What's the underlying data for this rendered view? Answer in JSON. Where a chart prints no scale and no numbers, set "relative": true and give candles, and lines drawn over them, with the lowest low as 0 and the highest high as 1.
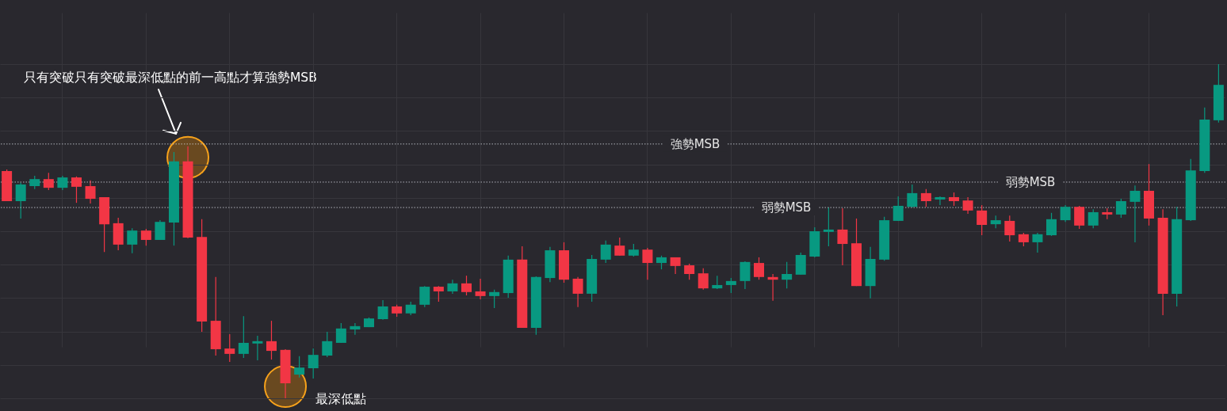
{
  "chart_data": {
    "type": "candlestick",
    "relative": true,
    "grid": true,
    "tick_labels": false,
    "categories": [
      null,
      null,
      null,
      null,
      null,
      null,
      null,
      null,
      null,
      null,
      null,
      null,
      null,
      null,
      null,
      null,
      null,
      null,
      null,
      null,
      null,
      null,
      null,
      null,
      null,
      null,
      null,
      null,
      null,
      null,
      null,
      null,
      null,
      null,
      null,
      null,
      null,
      null,
      null,
      null,
      null,
      null,
      null,
      null,
      null,
      null,
      null,
      null,
      null,
      null,
      null,
      null,
      null,
      null,
      null,
      null,
      null,
      null,
      null,
      null,
      null,
      null,
      null,
      null,
      null,
      null,
      null,
      null,
      null,
      null,
      null,
      null,
      null,
      null,
      null,
      null,
      null,
      null,
      null,
      null,
      null,
      null,
      null,
      null,
      null,
      null,
      null,
      null
    ],
    "ohlc": [
      [
        0.68,
        0.685,
        0.59,
        0.59
      ],
      [
        0.59,
        0.645,
        0.538,
        0.64
      ],
      [
        0.635,
        0.666,
        0.626,
        0.656
      ],
      [
        0.656,
        0.675,
        0.623,
        0.63
      ],
      [
        0.63,
        0.666,
        0.623,
        0.661
      ],
      [
        0.661,
        0.664,
        0.585,
        0.633
      ],
      [
        0.635,
        0.652,
        0.583,
        0.597
      ],
      [
        0.602,
        0.602,
        0.438,
        0.521
      ],
      [
        0.524,
        0.54,
        0.443,
        0.46
      ],
      [
        0.46,
        0.509,
        0.434,
        0.502
      ],
      [
        0.502,
        0.507,
        0.457,
        0.474
      ],
      [
        0.474,
        0.533,
        0.474,
        0.528
      ],
      [
        0.526,
        0.737,
        0.457,
        0.709
      ],
      [
        0.709,
        0.754,
        0.479,
        0.481
      ],
      [
        0.483,
        0.536,
        0.199,
        0.23
      ],
      [
        0.232,
        0.363,
        0.128,
        0.147
      ],
      [
        0.149,
        0.192,
        0.109,
        0.133
      ],
      [
        0.133,
        0.246,
        0.121,
        0.166
      ],
      [
        0.164,
        0.187,
        0.114,
        0.171
      ],
      [
        0.171,
        0.232,
        0.116,
        0.142
      ],
      [
        0.145,
        0.147,
        0,
        0.045
      ],
      [
        0.071,
        0.126,
        0.062,
        0.092
      ],
      [
        0.09,
        0.149,
        0.059,
        0.13
      ],
      [
        0.128,
        0.199,
        0.123,
        0.171
      ],
      [
        0.166,
        0.225,
        0.166,
        0.209
      ],
      [
        0.206,
        0.225,
        0.19,
        0.216
      ],
      [
        0.213,
        0.242,
        0.213,
        0.239
      ],
      [
        0.237,
        0.294,
        0.235,
        0.275
      ],
      [
        0.275,
        0.28,
        0.244,
        0.254
      ],
      [
        0.254,
        0.289,
        0.249,
        0.28
      ],
      [
        0.28,
        0.336,
        0.273,
        0.334
      ],
      [
        0.334,
        0.336,
        0.289,
        0.32
      ],
      [
        0.32,
        0.355,
        0.313,
        0.344
      ],
      [
        0.344,
        0.367,
        0.308,
        0.318
      ],
      [
        0.32,
        0.358,
        0.296,
        0.306
      ],
      [
        0.306,
        0.325,
        0.27,
        0.318
      ],
      [
        0.315,
        0.427,
        0.301,
        0.415
      ],
      [
        0.415,
        0.455,
        0.211,
        0.211
      ],
      [
        0.211,
        0.365,
        0.19,
        0.363
      ],
      [
        0.36,
        0.453,
        0.348,
        0.443
      ],
      [
        0.443,
        0.467,
        0.346,
        0.355
      ],
      [
        0.358,
        0.363,
        0.273,
        0.313
      ],
      [
        0.313,
        0.429,
        0.289,
        0.417
      ],
      [
        0.415,
        0.472,
        0.405,
        0.46
      ],
      [
        0.457,
        0.481,
        0.427,
        0.427
      ],
      [
        0.427,
        0.462,
        0.424,
        0.445
      ],
      [
        0.445,
        0.45,
        0.355,
        0.405
      ],
      [
        0.405,
        0.427,
        0.386,
        0.422
      ],
      [
        0.422,
        0.422,
        0.372,
        0.396
      ],
      [
        0.398,
        0.403,
        0.355,
        0.372
      ],
      [
        0.374,
        0.389,
        0.325,
        0.329
      ],
      [
        0.329,
        0.367,
        0.327,
        0.339
      ],
      [
        0.339,
        0.36,
        0.315,
        0.351
      ],
      [
        0.351,
        0.41,
        0.327,
        0.408
      ],
      [
        0.405,
        0.422,
        0.355,
        0.363
      ],
      [
        0.363,
        0.372,
        0.292,
        0.355
      ],
      [
        0.355,
        0.408,
        0.329,
        0.372
      ],
      [
        0.37,
        0.436,
        0.37,
        0.429
      ],
      [
        0.424,
        0.512,
        0.422,
        0.5
      ],
      [
        0.498,
        0.571,
        0.455,
        0.505
      ],
      [
        0.505,
        0.569,
        0.398,
        0.462
      ],
      [
        0.464,
        0.538,
        0.336,
        0.336
      ],
      [
        0.336,
        0.453,
        0.299,
        0.417
      ],
      [
        0.415,
        0.543,
        0.412,
        0.533
      ],
      [
        0.531,
        0.604,
        0.531,
        0.576
      ],
      [
        0.573,
        0.64,
        0.571,
        0.614
      ],
      [
        0.614,
        0.626,
        0.573,
        0.59
      ],
      [
        0.595,
        0.604,
        0.578,
        0.602
      ],
      [
        0.602,
        0.616,
        0.576,
        0.59
      ],
      [
        0.592,
        0.602,
        0.552,
        0.562
      ],
      [
        0.562,
        0.578,
        0.488,
        0.519
      ],
      [
        0.521,
        0.547,
        0.509,
        0.533
      ],
      [
        0.531,
        0.547,
        0.469,
        0.488
      ],
      [
        0.491,
        0.495,
        0.455,
        0.467
      ],
      [
        0.467,
        0.495,
        0.436,
        0.491
      ],
      [
        0.488,
        0.555,
        0.486,
        0.536
      ],
      [
        0.533,
        0.578,
        0.528,
        0.573
      ],
      [
        0.573,
        0.576,
        0.507,
        0.517
      ],
      [
        0.517,
        0.566,
        0.509,
        0.557
      ],
      [
        0.557,
        0.569,
        0.536,
        0.55
      ],
      [
        0.55,
        0.597,
        0.54,
        0.59
      ],
      [
        0.588,
        0.637,
        0.467,
        0.621
      ],
      [
        0.621,
        0.701,
        0.517,
        0.538
      ],
      [
        0.54,
        0.566,
        0.249,
        0.313
      ],
      [
        0.313,
        0.573,
        0.275,
        0.536
      ],
      [
        0.533,
        0.716,
        0.531,
        0.682
      ],
      [
        0.68,
        0.87,
        0.675,
        0.834
      ],
      [
        0.832,
        1,
        0.825,
        0.938
      ]
    ],
    "colors": [
      "#f23645",
      "#089981",
      "#089981",
      "#f23645",
      "#089981",
      "#f23645",
      "#f23645",
      "#f23645",
      "#f23645",
      "#089981",
      "#f23645",
      "#089981",
      "#089981",
      "#f23645",
      "#f23645",
      "#f23645",
      "#f23645",
      "#089981",
      "#089981",
      "#f23645",
      "#f23645",
      "#089981",
      "#089981",
      "#089981",
      "#089981",
      "#089981",
      "#089981",
      "#089981",
      "#f23645",
      "#089981",
      "#089981",
      "#f23645",
      "#089981",
      "#f23645",
      "#f23645",
      "#089981",
      "#089981",
      "#f23645",
      "#089981",
      "#089981",
      "#f23645",
      "#f23645",
      "#089981",
      "#089981",
      "#f23645",
      "#089981",
      "#f23645",
      "#089981",
      "#f23645",
      "#f23645",
      "#f23645",
      "#089981",
      "#089981",
      "#089981",
      "#f23645",
      "#f23645",
      "#089981",
      "#089981",
      "#089981",
      "#089981",
      "#f23645",
      "#f23645",
      "#089981",
      "#089981",
      "#089981",
      "#089981",
      "#f23645",
      "#089981",
      "#f23645",
      "#f23645",
      "#f23645",
      "#089981",
      "#f23645",
      "#f23645",
      "#089981",
      "#089981",
      "#089981",
      "#f23645",
      "#089981",
      "#f23645",
      "#089981",
      "#089981",
      "#f23645",
      "#f23645",
      "#089981",
      "#089981",
      "#089981",
      "#089981"
    ],
    "ref_lines": [
      {
        "axis": "y",
        "value": 0.761,
        "label": "強勢MSB",
        "color": "#d1d4dc",
        "line_style": "dotted"
      },
      {
        "axis": "y",
        "value": 0.571,
        "label": "弱勢MSB",
        "color": "#d1d4dc",
        "line_style": "dotted"
      },
      {
        "axis": "y",
        "value": 0.647,
        "label": "弱勢MSB",
        "color": "#d1d4dc",
        "line_style": "dotted"
      }
    ],
    "annotations": [
      "只有突破只有突破最深低點的前一高點才算強勢MSB",
      "最深低點"
    ]
  }
}
